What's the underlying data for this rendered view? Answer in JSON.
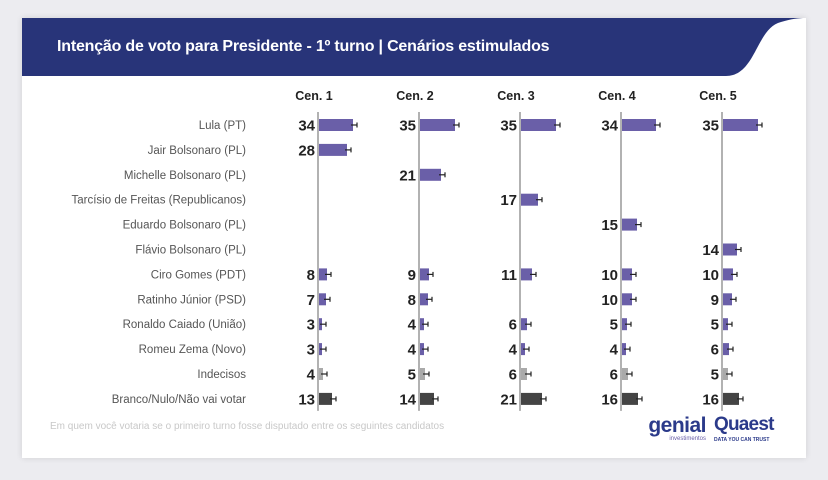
{
  "header": {
    "title": "Intenção de voto para Presidente - 1º turno | Cenários estimulados"
  },
  "footnote": "Em quem você votaria se o primeiro turno fosse disputado entre os seguintes candidatos",
  "logos": {
    "genial": "genial",
    "genial_sub": "investimentos",
    "quaest": "Quaest",
    "quaest_sub": "DATA YOU CAN TRUST"
  },
  "watermark": {
    "line1": "genial",
    "line2": "investimentos"
  },
  "colors": {
    "header": "#283479",
    "candidate": "#6a5fa8",
    "undecided": "#aaaaaa",
    "blank": "#444444",
    "axis": "#999999"
  },
  "chart_data": {
    "type": "bar",
    "orientation": "horizontal",
    "title": "Intenção de voto para Presidente - 1º turno | Cenários estimulados",
    "columns": [
      "Cen. 1",
      "Cen. 2",
      "Cen. 3",
      "Cen. 4",
      "Cen. 5"
    ],
    "categories": [
      "Lula (PT)",
      "Jair Bolsonaro (PL)",
      "Michelle Bolsonaro (PL)",
      "Tarcísio de Freitas (Republicanos)",
      "Eduardo Bolsonaro (PL)",
      "Flávio Bolsonaro (PL)",
      "Ciro Gomes (PDT)",
      "Ratinho Júnior (PSD)",
      "Ronaldo Caiado (União)",
      "Romeu Zema (Novo)",
      "Indecisos",
      "Branco/Nulo/Não vai votar"
    ],
    "series": [
      {
        "name": "Cen. 1",
        "values": [
          34,
          28,
          null,
          null,
          null,
          null,
          8,
          7,
          3,
          3,
          4,
          13
        ]
      },
      {
        "name": "Cen. 2",
        "values": [
          35,
          null,
          21,
          null,
          null,
          null,
          9,
          8,
          4,
          4,
          5,
          14
        ]
      },
      {
        "name": "Cen. 3",
        "values": [
          35,
          null,
          null,
          17,
          null,
          null,
          11,
          null,
          6,
          4,
          6,
          21
        ]
      },
      {
        "name": "Cen. 4",
        "values": [
          34,
          null,
          null,
          null,
          15,
          null,
          10,
          10,
          5,
          4,
          6,
          16
        ]
      },
      {
        "name": "Cen. 5",
        "values": [
          35,
          null,
          null,
          null,
          null,
          14,
          10,
          9,
          5,
          6,
          5,
          16
        ]
      }
    ],
    "error_bars": true,
    "unit": "%"
  }
}
